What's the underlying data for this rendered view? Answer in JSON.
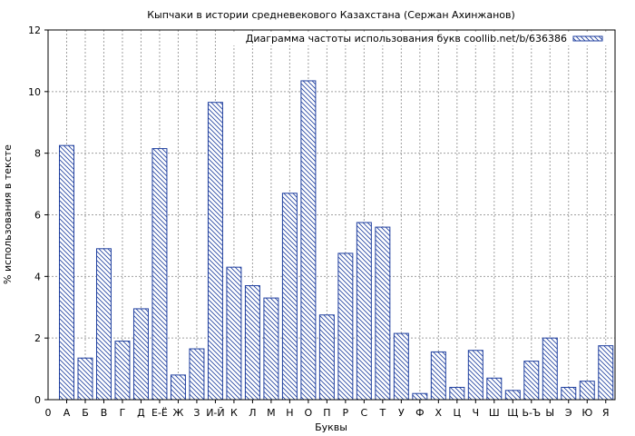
{
  "chart_data": {
    "type": "bar",
    "title": "Кыпчаки в истории средневекового Казахстана (Сержан Ахинжанов)",
    "xlabel": "Буквы",
    "ylabel": "% использования в тексте",
    "legend": "Диаграмма частоты использования букв coollib.net/b/636386",
    "legend_position": "top-right",
    "grid": true,
    "ylim": [
      0,
      12
    ],
    "yticks": [
      0,
      2,
      4,
      6,
      8,
      10,
      12
    ],
    "x_origin_label": "0",
    "categories": [
      "А",
      "Б",
      "В",
      "Г",
      "Д",
      "Е-Ё",
      "Ж",
      "З",
      "И-Й",
      "К",
      "Л",
      "М",
      "Н",
      "О",
      "П",
      "Р",
      "С",
      "Т",
      "У",
      "Ф",
      "Х",
      "Ц",
      "Ч",
      "Ш",
      "Щ",
      "Ь-Ъ",
      "Ы",
      "Э",
      "Ю",
      "Я"
    ],
    "values": [
      8.25,
      1.35,
      4.9,
      1.9,
      2.95,
      8.15,
      0.8,
      1.65,
      9.65,
      4.3,
      3.7,
      3.3,
      6.7,
      10.35,
      2.75,
      4.75,
      5.75,
      5.6,
      2.15,
      0.2,
      1.55,
      0.4,
      1.6,
      0.7,
      0.3,
      1.25,
      2.0,
      0.4,
      0.6,
      1.75
    ],
    "colors": {
      "bar_stroke": "#1f3f9f",
      "hatch": "#1f3f9f",
      "grid": "#a0a0a0",
      "axis": "#000000"
    }
  }
}
